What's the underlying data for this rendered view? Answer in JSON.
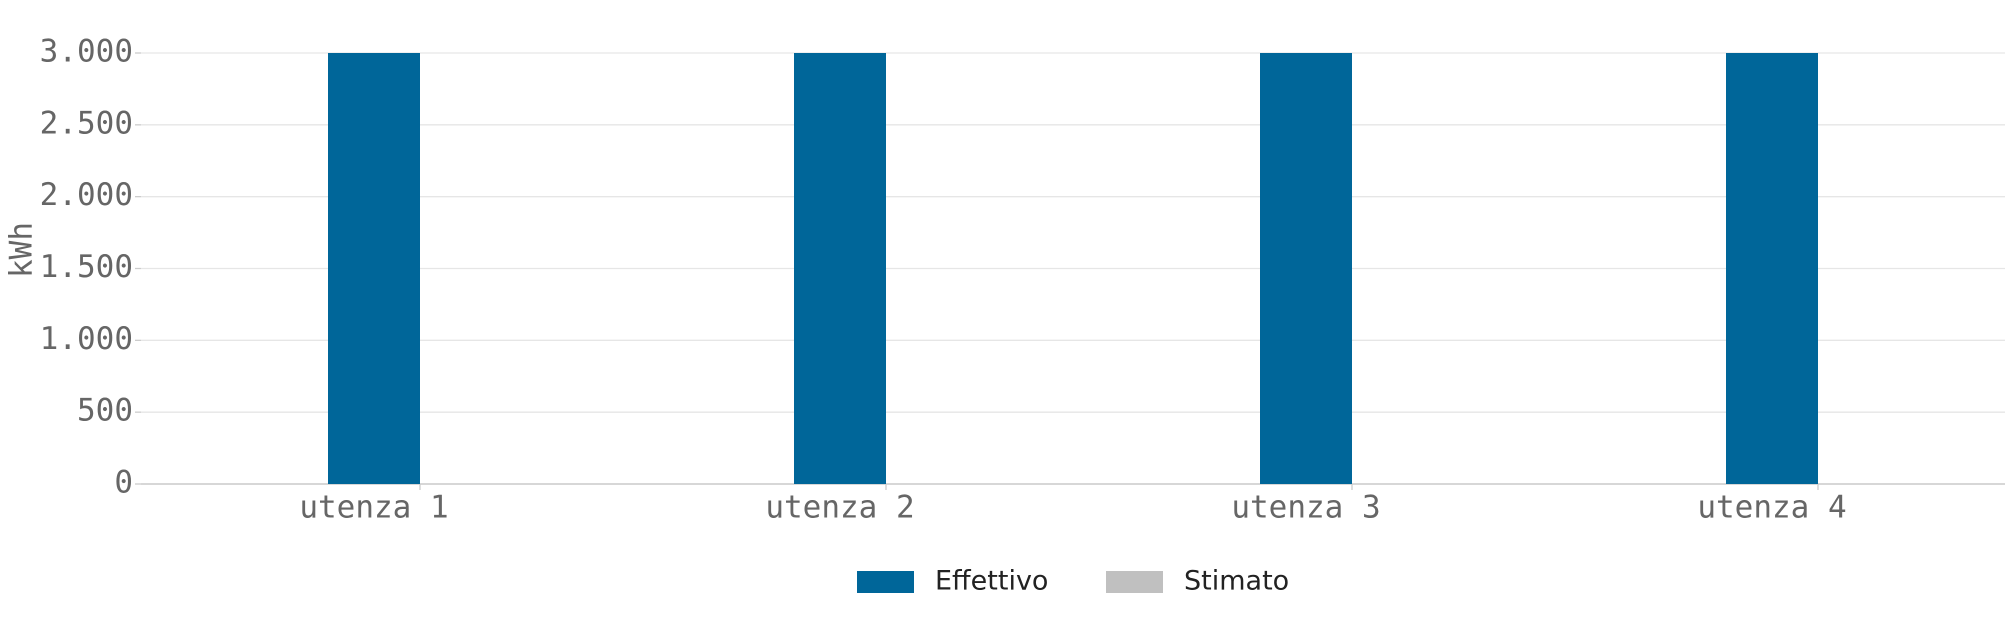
{
  "chart_data": {
    "type": "bar",
    "y_label": "kWh",
    "categories": [
      "utenza 1",
      "utenza 2",
      "utenza 3",
      "utenza 4"
    ],
    "series": [
      {
        "name": "Effettivo",
        "color": "#006699",
        "values": [
          3000,
          3000,
          3000,
          3000
        ]
      },
      {
        "name": "Stimato",
        "color": "#c0c0c0",
        "values": [
          0,
          0,
          0,
          0
        ]
      }
    ],
    "ylim": [
      0,
      3000
    ],
    "yticks": [
      0,
      500,
      {
        "value": 1000,
        "label": "1.000"
      },
      {
        "value": 1500,
        "label": "1.500"
      },
      {
        "value": 2000,
        "label": "2.000"
      },
      {
        "value": 2500,
        "label": "2.500"
      },
      {
        "value": 3000,
        "label": "3.000"
      }
    ],
    "grid": true,
    "legend": "bottom"
  }
}
